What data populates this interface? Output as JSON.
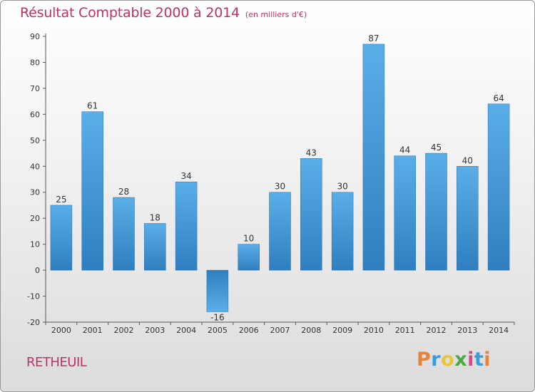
{
  "chart_data": {
    "type": "bar",
    "title": "Résultat Comptable 2000 à 2014",
    "subtitle": "(en milliers d'€)",
    "categories": [
      "2000",
      "2001",
      "2002",
      "2003",
      "2004",
      "2005",
      "2006",
      "2007",
      "2008",
      "2009",
      "2010",
      "2011",
      "2012",
      "2013",
      "2014"
    ],
    "values": [
      25,
      61,
      28,
      18,
      34,
      -16,
      10,
      30,
      43,
      30,
      87,
      44,
      45,
      40,
      64
    ],
    "value_labels": [
      "25",
      "61",
      "28",
      "18",
      "34",
      "-16",
      "10",
      "30",
      "43",
      "30",
      "87",
      "44",
      "45",
      "40",
      "64"
    ],
    "ylim": [
      -20,
      90
    ],
    "yticks": [
      "90",
      "80",
      "70",
      "60",
      "50",
      "40",
      "30",
      "20",
      "10",
      "0",
      "-10",
      "-20"
    ],
    "xlabel": "",
    "ylabel": "",
    "grid": false,
    "bar_color": "#3d8fd1"
  },
  "commune": "RETHEUIL",
  "logo": {
    "letters": [
      "P",
      "r",
      "o",
      "x",
      "i",
      "t",
      "i"
    ],
    "colors": [
      "#e8833a",
      "#3a9bd9",
      "#e8c53a",
      "#49a842",
      "#d94a8c",
      "#3a9bd9",
      "#e8833a"
    ]
  }
}
